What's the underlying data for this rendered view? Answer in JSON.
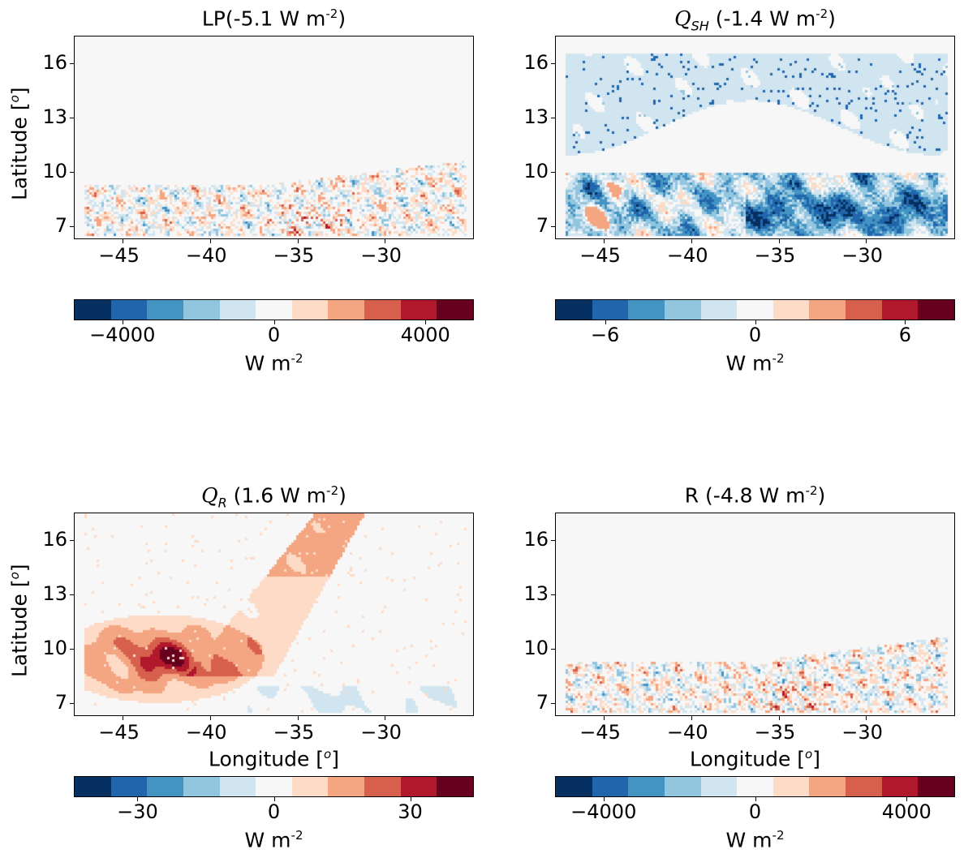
{
  "colors": [
    "#053061",
    "#2166ac",
    "#4393c3",
    "#92c5de",
    "#d1e5f0",
    "#f7f7f7",
    "#fddbc7",
    "#f4a582",
    "#d6604d",
    "#b2182b",
    "#67001f"
  ],
  "chart_data": [
    {
      "type": "heatmap",
      "title_main": "LP",
      "title_value": "(-5.1 W m",
      "title_exp": "-2",
      "title_close": ")",
      "ylabel": "Latitude [",
      "ylabel_sup": "o",
      "ylabel_close": "]",
      "xlabel": "",
      "x_ticks": [
        "−45",
        "−40",
        "−35",
        "−30"
      ],
      "y_ticks": [
        "16",
        "13",
        "10",
        "7"
      ],
      "xlim": [
        -47.8,
        -24.9
      ],
      "ylim": [
        6.3,
        17.5
      ],
      "cbar_ticks": [
        "−4000",
        "0",
        "4000"
      ],
      "cbar_tick_values": [
        -4000,
        0,
        4000
      ],
      "cbar_range": [
        -5280,
        5280
      ],
      "cbar_label": "W m",
      "cbar_exp": "-2",
      "pattern": "lp"
    },
    {
      "type": "heatmap",
      "title_main": "Q",
      "title_sub": "SH",
      "title_value": " (-1.4 W m",
      "title_exp": "-2",
      "title_close": ")",
      "xlabel": "",
      "x_ticks": [
        "−45",
        "−40",
        "−35",
        "−30"
      ],
      "y_ticks": [
        "16",
        "13",
        "10",
        "7"
      ],
      "xlim": [
        -47.8,
        -24.9
      ],
      "ylim": [
        6.3,
        17.5
      ],
      "cbar_ticks": [
        "−6",
        "0",
        "6"
      ],
      "cbar_tick_values": [
        -6,
        0,
        6
      ],
      "cbar_range": [
        -8,
        8
      ],
      "cbar_label": "W m",
      "cbar_exp": "-2",
      "pattern": "qsh"
    },
    {
      "type": "heatmap",
      "title_main": "Q",
      "title_sub": "R",
      "title_value": " (1.6 W m",
      "title_exp": "-2",
      "title_close": ")",
      "ylabel": "Latitude [",
      "ylabel_sup": "o",
      "ylabel_close": "]",
      "xlabel": "Longitude [",
      "xlabel_sup": "o",
      "xlabel_close": "]",
      "x_ticks": [
        "−45",
        "−40",
        "−35",
        "−30"
      ],
      "y_ticks": [
        "16",
        "13",
        "10",
        "7"
      ],
      "xlim": [
        -47.8,
        -24.9
      ],
      "ylim": [
        6.3,
        17.5
      ],
      "cbar_ticks": [
        "−30",
        "0",
        "30"
      ],
      "cbar_tick_values": [
        -30,
        0,
        30
      ],
      "cbar_range": [
        -44,
        44
      ],
      "cbar_label": "W m",
      "cbar_exp": "-2",
      "pattern": "qr"
    },
    {
      "type": "heatmap",
      "title_main": "R",
      "title_value": " (-4.8 W m",
      "title_exp": "-2",
      "title_close": ")",
      "xlabel": "Longitude [",
      "xlabel_sup": "o",
      "xlabel_close": "]",
      "x_ticks": [
        "−45",
        "−40",
        "−35",
        "−30"
      ],
      "y_ticks": [
        "16",
        "13",
        "10",
        "7"
      ],
      "xlim": [
        -47.8,
        -24.9
      ],
      "ylim": [
        6.3,
        17.5
      ],
      "cbar_ticks": [
        "−4000",
        "0",
        "4000"
      ],
      "cbar_tick_values": [
        -4000,
        0,
        4000
      ],
      "cbar_range": [
        -5280,
        5280
      ],
      "cbar_label": "W m",
      "cbar_exp": "-2",
      "pattern": "lp"
    }
  ],
  "tick_values": {
    "x": [
      -45,
      -40,
      -35,
      -30
    ],
    "y": [
      16,
      13,
      10,
      7
    ]
  }
}
